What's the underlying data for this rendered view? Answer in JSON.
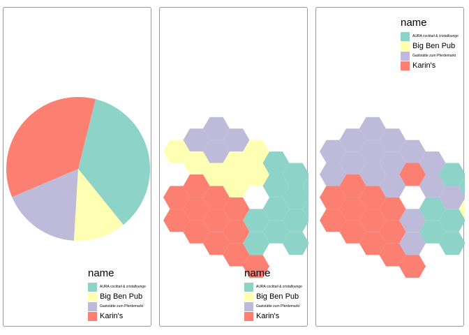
{
  "chart_data": [
    {
      "type": "pie",
      "categories": [
        "AURA cocktail & cristallounge",
        "Big Ben Pub",
        "Gaststätte zum Pferdemarkt",
        "Karin's"
      ],
      "values": [
        12,
        4,
        6,
        12
      ],
      "legend": {
        "title": "name",
        "position": "bottom-right"
      }
    },
    {
      "type": "hexagon-map",
      "categories": [
        "AURA cocktail & cristallounge",
        "Big Ben Pub",
        "Gaststätte zum Pferdemarkt",
        "Karin's"
      ],
      "hex_counts": [
        12,
        4,
        6,
        12
      ],
      "legend": {
        "title": "name",
        "position": "bottom-right"
      }
    },
    {
      "type": "hexagon-map",
      "categories": [
        "AURA cocktail & cristallounge",
        "Big Ben Pub",
        "Gaststätte zum Pferdemarkt",
        "Karin's"
      ],
      "hex_counts": [
        5,
        1,
        16,
        12
      ],
      "legend": {
        "title": "name",
        "position": "top-right"
      }
    }
  ],
  "legend": {
    "title": "name",
    "items": [
      {
        "label": "AURA cocktail & cristallounge",
        "color": "#8DD3C7",
        "size": "tiny"
      },
      {
        "label": "Big Ben Pub",
        "color": "#FFFFB3",
        "size": "big"
      },
      {
        "label": "Gaststätte zum Pferdemarkt",
        "color": "#BEBADA",
        "size": "tiny"
      },
      {
        "label": "Karin's",
        "color": "#FB8072",
        "size": "big"
      }
    ]
  }
}
